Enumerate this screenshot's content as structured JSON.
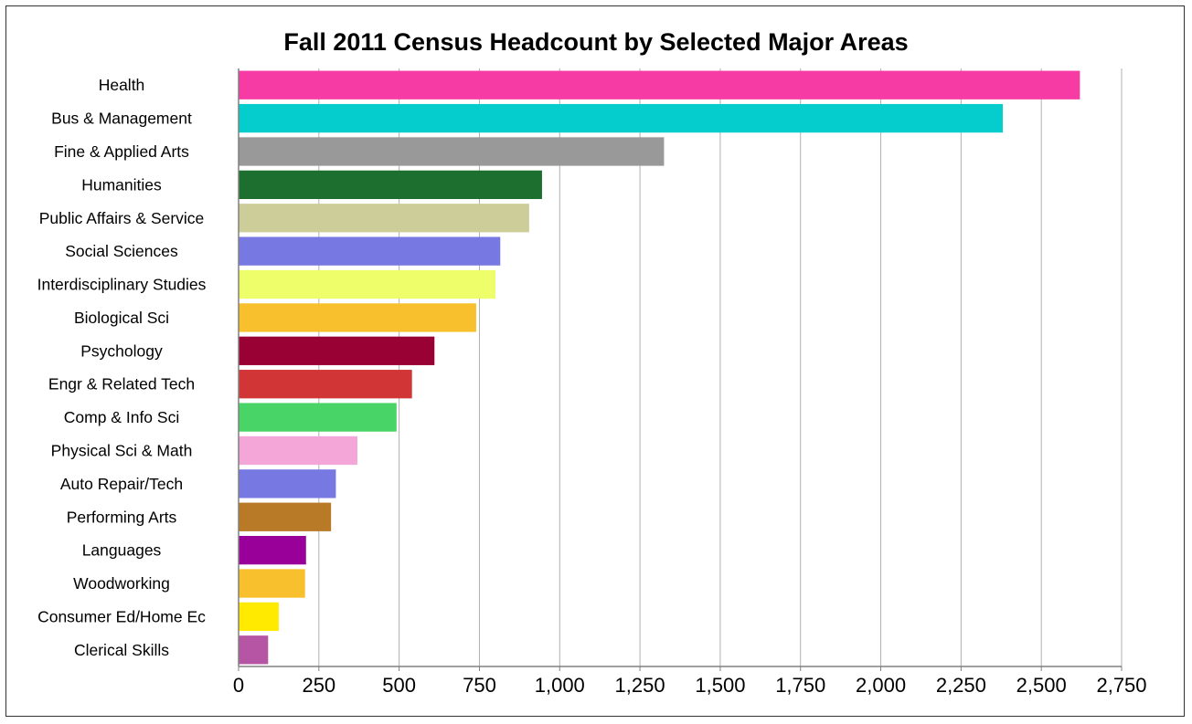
{
  "chart_data": {
    "type": "bar",
    "orientation": "horizontal",
    "title": "Fall 2011 Census Headcount by Selected Major Areas",
    "xlabel": "",
    "ylabel": "",
    "xlim": [
      0,
      2750
    ],
    "grid": true,
    "categories": [
      "Health",
      "Bus & Management",
      "Fine & Applied Arts",
      "Humanities",
      "Public Affairs & Service",
      "Social Sciences",
      "Interdisciplinary Studies",
      "Biological Sci",
      "Psychology",
      "Engr & Related Tech",
      "Comp & Info Sci",
      "Physical Sci & Math",
      "Auto Repair/Tech",
      "Performing Arts",
      "Languages",
      "Woodworking",
      "Consumer Ed/Home Ec",
      "Clerical Skills"
    ],
    "values": [
      2620,
      2380,
      1325,
      945,
      905,
      815,
      800,
      740,
      610,
      540,
      492,
      370,
      303,
      288,
      210,
      207,
      125,
      92
    ],
    "colors": [
      "#f73ba4",
      "#06cdcd",
      "#999999",
      "#1c6f2f",
      "#cdcd9a",
      "#7878e3",
      "#eefe6a",
      "#f8c02c",
      "#990033",
      "#d13535",
      "#48d466",
      "#f4a6d8",
      "#7878e3",
      "#b87a26",
      "#990099",
      "#f8c02c",
      "#ffea00",
      "#b655a3"
    ],
    "x_ticks": [
      "0",
      "250",
      "500",
      "750",
      "1,000",
      "1,250",
      "1,500",
      "1,750",
      "2,000",
      "2,250",
      "2,500",
      "2,750"
    ],
    "x_tick_values": [
      0,
      250,
      500,
      750,
      1000,
      1250,
      1500,
      1750,
      2000,
      2250,
      2500,
      2750
    ]
  }
}
